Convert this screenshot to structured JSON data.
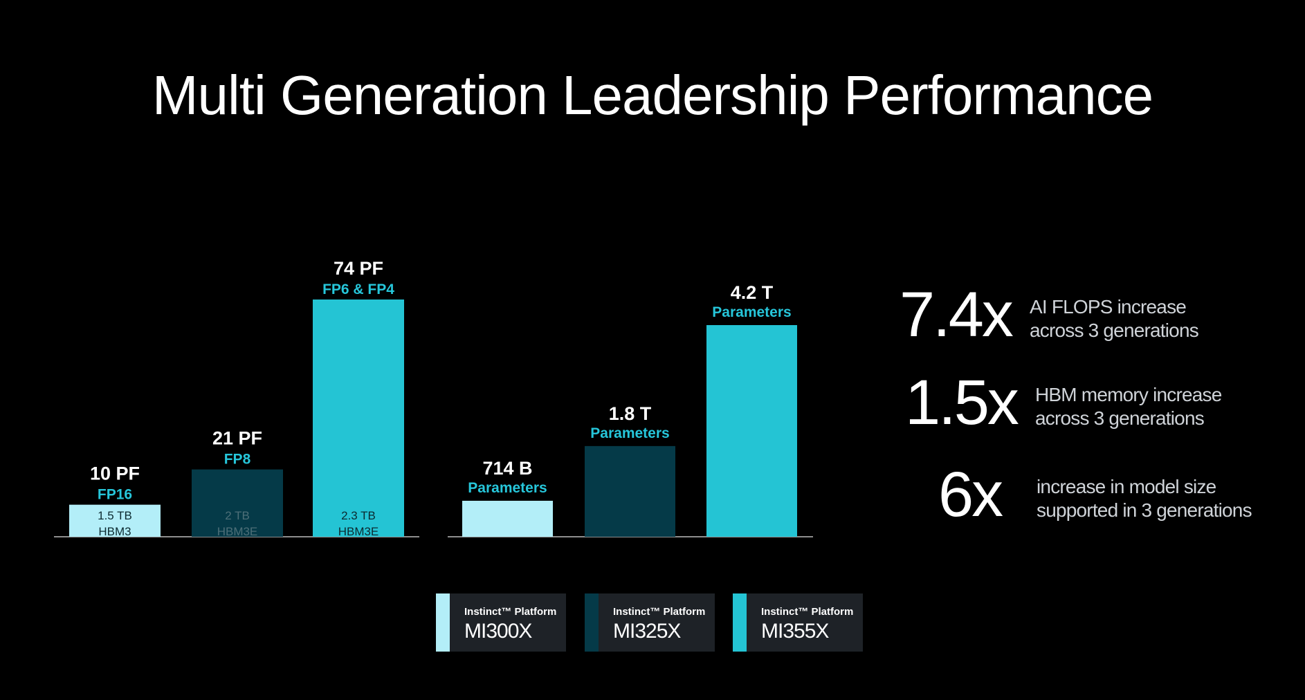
{
  "title": "Multi Generation Leadership Performance",
  "colors": {
    "MI300X": "#b3eef8",
    "MI325X": "#053a48",
    "MI355X": "#24c4d4",
    "accent_label": "#26c6da",
    "axis": "#8e8e8e",
    "legend_bg": "#1e2227"
  },
  "chart_data": [
    {
      "type": "bar",
      "categories": [
        "MI300X",
        "MI325X",
        "MI355X"
      ],
      "values": [
        10,
        21,
        74
      ],
      "value_labels": [
        "10 PF",
        "21 PF",
        "74 PF"
      ],
      "precision_labels": [
        "FP16",
        "FP8",
        "FP6 & FP4"
      ],
      "memory_labels": [
        [
          "1.5 TB",
          "HBM3"
        ],
        [
          "2 TB",
          "HBM3E"
        ],
        [
          "2.3 TB",
          "HBM3E"
        ]
      ]
    },
    {
      "type": "bar",
      "categories": [
        "MI300X",
        "MI325X",
        "MI355X"
      ],
      "values": [
        714,
        1800,
        4200
      ],
      "value_labels": [
        "714 B",
        "1.8 T",
        "4.2 T"
      ],
      "sub_labels": [
        "Parameters",
        "Parameters",
        "Parameters"
      ]
    }
  ],
  "stats": [
    {
      "value": "7.4x",
      "line1": "AI FLOPS increase",
      "line2": "across 3 generations"
    },
    {
      "value": "1.5x",
      "line1": "HBM memory increase",
      "line2": "across 3 generations"
    },
    {
      "value": "6x",
      "line1": "increase in model size",
      "line2": "supported in 3 generations"
    }
  ],
  "legend": [
    {
      "small": "Instinct™ Platform",
      "name": "MI300X"
    },
    {
      "small": "Instinct™ Platform",
      "name": "MI325X"
    },
    {
      "small": "Instinct™ Platform",
      "name": "MI355X"
    }
  ]
}
